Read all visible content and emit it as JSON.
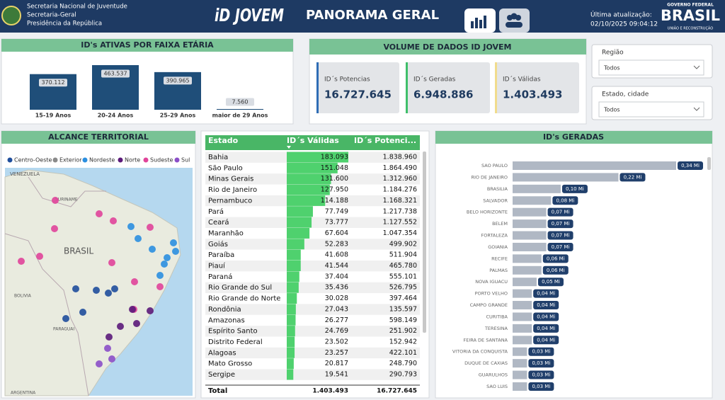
{
  "header": {
    "org_lines": [
      "Secretaria Nacional de Juventude",
      "Secretaria-Geral",
      "Presidência da República"
    ],
    "logo": "iD JOVEM",
    "title": "PANORAMA GERAL",
    "update_label": "Última atualização:",
    "update_time": "02/10/2025 09:04:12",
    "gov_top": "GOVERNO FEDERAL",
    "gov_brand": "BRASIL",
    "gov_slogan": "UNIÃO E RECONSTRUÇÃO"
  },
  "age_panel": {
    "title": "ID's ATIVAS POR FAIXA ETÁRIA",
    "chart": {
      "type": "bar",
      "categories": [
        "15-19 Anos",
        "20-24 Anos",
        "25-29 Anos",
        "maior de 29 Anos"
      ],
      "values": [
        370112,
        463537,
        390965,
        7560
      ],
      "value_labels": [
        "370.112",
        "463.537",
        "390.965",
        "7.560"
      ],
      "color": "#1f4e79"
    }
  },
  "volume_panel": {
    "title": "VOLUME DE DADOS ID JOVEM",
    "cards": [
      {
        "label": "ID´s Potencias",
        "value": "16.727.645",
        "color": "#2f6db5"
      },
      {
        "label": "ID´s Geradas",
        "value": "6.948.886",
        "color": "#3fbf6a"
      },
      {
        "label": "ID´s Válidas",
        "value": "1.403.493",
        "color": "#f1dc8c"
      }
    ]
  },
  "filters": [
    {
      "label": "Região",
      "value": "Todos"
    },
    {
      "label": "Estado, cidade",
      "value": "Todos"
    }
  ],
  "map_panel": {
    "title": "ALCANCE TERRITORIAL",
    "legend": [
      {
        "name": "Centro-Oeste",
        "color": "#1f4e9c"
      },
      {
        "name": "Exterior",
        "color": "#8a8a8a"
      },
      {
        "name": "Nordeste",
        "color": "#2b8fe0"
      },
      {
        "name": "Norte",
        "color": "#5b1a7a"
      },
      {
        "name": "Sudeste",
        "color": "#e0449a"
      },
      {
        "name": "Sul",
        "color": "#8b4fc8"
      }
    ],
    "map_labels": [
      "VENEZUELA",
      "SURINAME",
      "BRASIL",
      "BOLIVIA",
      "PARAGUAI",
      "ARGENTINA"
    ]
  },
  "table": {
    "columns": [
      "Estado",
      "ID´s Válidas",
      "ID´s Potenci..."
    ],
    "rows": [
      [
        "Bahia",
        "183.093",
        "1.838.960"
      ],
      [
        "São Paulo",
        "151.048",
        "1.864.490"
      ],
      [
        "Minas Gerais",
        "131.600",
        "1.312.960"
      ],
      [
        "Rio de Janeiro",
        "127.950",
        "1.184.276"
      ],
      [
        "Pernambuco",
        "114.188",
        "1.168.321"
      ],
      [
        "Pará",
        "77.749",
        "1.217.738"
      ],
      [
        "Ceará",
        "73.777",
        "1.127.552"
      ],
      [
        "Maranhão",
        "67.604",
        "1.047.354"
      ],
      [
        "Goiás",
        "52.283",
        "499.902"
      ],
      [
        "Paraíba",
        "41.608",
        "511.904"
      ],
      [
        "Piauí",
        "41.544",
        "465.780"
      ],
      [
        "Paraná",
        "37.404",
        "555.101"
      ],
      [
        "Rio Grande do Sul",
        "35.436",
        "526.795"
      ],
      [
        "Rio Grande do Norte",
        "30.028",
        "397.464"
      ],
      [
        "Rondônia",
        "27.043",
        "135.597"
      ],
      [
        "Amazonas",
        "26.277",
        "598.149"
      ],
      [
        "Espírito Santo",
        "24.769",
        "251.902"
      ],
      [
        "Distrito Federal",
        "23.502",
        "152.942"
      ],
      [
        "Alagoas",
        "23.257",
        "422.101"
      ],
      [
        "Mato Grosso",
        "20.817",
        "248.790"
      ],
      [
        "Sergipe",
        "19.541",
        "290.793"
      ]
    ],
    "total": [
      "Total",
      "1.403.493",
      "16.727.645"
    ]
  },
  "cities_panel": {
    "title": "ID's GERADAS",
    "chart": {
      "type": "bar",
      "orientation": "horizontal",
      "categories": [
        "SAO PAULO",
        "RIO DE JANEIRO",
        "BRASILIA",
        "SALVADOR",
        "BELO HORIZONTE",
        "BELEM",
        "FORTALEZA",
        "GOIANIA",
        "RECIFE",
        "PALMAS",
        "NOVA IGUACU",
        "PORTO VELHO",
        "CAMPO GRANDE",
        "CURITIBA",
        "TERESINA",
        "FEIRA DE SANTANA",
        "VITORIA DA CONQUISTA",
        "DUQUE DE CAXIAS",
        "GUARULHOS",
        "SAO LUIS"
      ],
      "values": [
        0.34,
        0.22,
        0.1,
        0.08,
        0.07,
        0.07,
        0.07,
        0.07,
        0.06,
        0.06,
        0.05,
        0.04,
        0.04,
        0.04,
        0.04,
        0.04,
        0.03,
        0.03,
        0.03,
        0.03
      ],
      "value_labels": [
        "0,34 Mi",
        "0,22 Mi",
        "0,10 Mi",
        "0,08 Mi",
        "0,07 Mi",
        "0,07 Mi",
        "0,07 Mi",
        "0,07 Mi",
        "0,06 Mi",
        "0,06 Mi",
        "0,05 Mi",
        "0,04 Mi",
        "0,04 Mi",
        "0,04 Mi",
        "0,04 Mi",
        "0,04 Mi",
        "0,03 Mi",
        "0,03 Mi",
        "0,03 Mi",
        "0,03 Mi"
      ],
      "color": "#b0b8c4"
    }
  }
}
